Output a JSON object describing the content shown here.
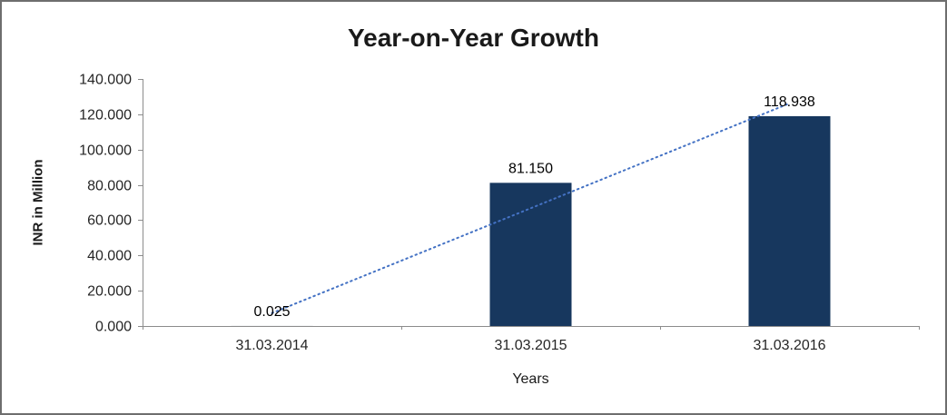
{
  "chart_data": {
    "type": "bar",
    "title": "Year-on-Year Growth",
    "xlabel": "Years",
    "ylabel": "INR in Million",
    "categories": [
      "31.03.2014",
      "31.03.2015",
      "31.03.2016"
    ],
    "values": [
      0.025,
      81.15,
      118.938
    ],
    "value_labels": [
      "0.025",
      "81.150",
      "118.938"
    ],
    "ylim": [
      0,
      140
    ],
    "ytick_step": 20,
    "ytick_labels": [
      "0.000",
      "20.000",
      "40.000",
      "60.000",
      "80.000",
      "100.000",
      "120.000",
      "140.000"
    ],
    "grid": false,
    "legend": "none",
    "bar_color": "#17375E",
    "axis_color": "#8c8c8c",
    "text_color": "#262626",
    "trendline": {
      "type": "linear",
      "style": "dotted",
      "color": "#4472C4",
      "values_at_ends": [
        7.3,
        126.2
      ]
    }
  }
}
